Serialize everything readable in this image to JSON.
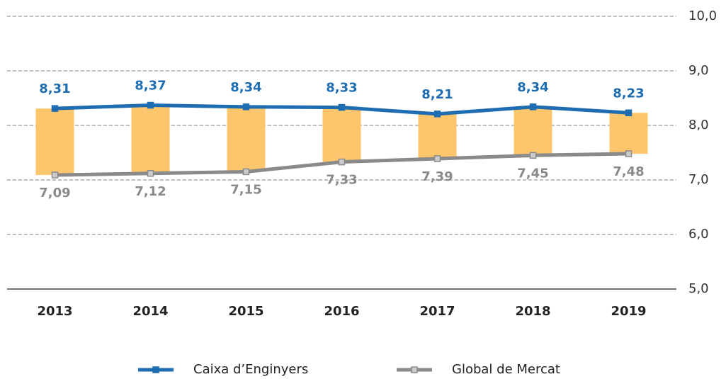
{
  "chart_data": {
    "type": "line",
    "categories": [
      "2013",
      "2014",
      "2015",
      "2016",
      "2017",
      "2018",
      "2019"
    ],
    "series": [
      {
        "name": "Caixa d’Enginyers",
        "color": "#1f6db1",
        "values": [
          8.31,
          8.37,
          8.34,
          8.33,
          8.21,
          8.34,
          8.23
        ],
        "value_labels": [
          "8,31",
          "8,37",
          "8,34",
          "8,33",
          "8,21",
          "8,34",
          "8,23"
        ]
      },
      {
        "name": "Global de Mercat",
        "color": "#8a8a8a",
        "values": [
          7.09,
          7.12,
          7.15,
          7.33,
          7.39,
          7.45,
          7.48
        ],
        "value_labels": [
          "7,09",
          "7,12",
          "7,15",
          "7,33",
          "7,39",
          "7,45",
          "7,48"
        ]
      }
    ],
    "bar_color": "#fdc56c",
    "ylim": [
      5,
      10
    ],
    "yticks": [
      {
        "value": 5,
        "label": "5,0"
      },
      {
        "value": 6,
        "label": "6,0"
      },
      {
        "value": 7,
        "label": "7,0"
      },
      {
        "value": 8,
        "label": "8,0"
      },
      {
        "value": 9,
        "label": "9,0"
      },
      {
        "value": 10,
        "label": "10,0"
      }
    ],
    "grid": true,
    "legend": "bottom"
  }
}
